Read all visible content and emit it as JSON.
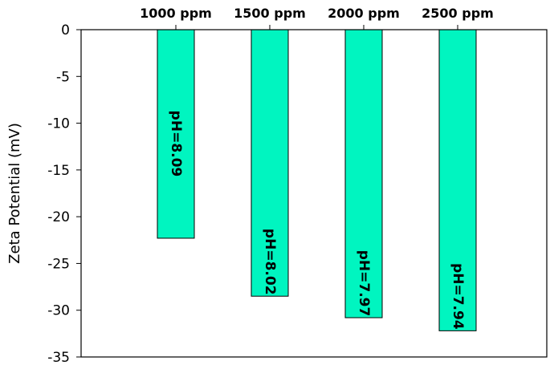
{
  "chart_data": {
    "type": "bar",
    "categories": [
      "1000 ppm",
      "1500 ppm",
      "2000 ppm",
      "2500 ppm"
    ],
    "values": [
      -22.3,
      -28.5,
      -30.8,
      -32.2
    ],
    "bar_labels": [
      "pH=8.09",
      "pH=8.02",
      "pH=7.97",
      "pH=7.94"
    ],
    "title": "",
    "xlabel": "",
    "ylabel": "Zeta Potential (mV)",
    "ylim": [
      -35,
      0
    ],
    "yticks": [
      0,
      -5,
      -10,
      -15,
      -20,
      -25,
      -30,
      -35
    ],
    "ytick_labels": [
      "0",
      "-5",
      "-10",
      "-15",
      "-20",
      "-25",
      "-30",
      "-35"
    ],
    "category_axis_position": "top",
    "grid": false,
    "bar_color": "#00f5c0"
  }
}
